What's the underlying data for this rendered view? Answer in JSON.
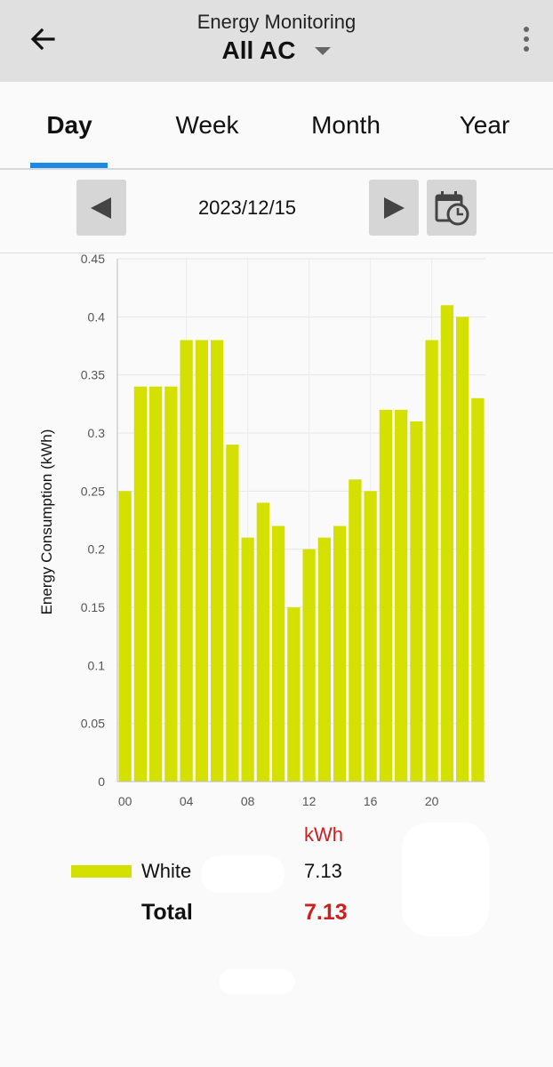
{
  "header": {
    "title": "Energy Monitoring",
    "selector_label": "All AC",
    "back_icon": "arrow-left-icon",
    "more_icon": "more-vert-icon"
  },
  "tabs": [
    {
      "label": "Day",
      "active": true
    },
    {
      "label": "Week",
      "active": false
    },
    {
      "label": "Month",
      "active": false
    },
    {
      "label": "Year",
      "active": false
    }
  ],
  "date_nav": {
    "date": "2023/12/15",
    "prev_icon": "triangle-left-icon",
    "next_icon": "triangle-right-icon",
    "calendar_icon": "calendar-clock-icon"
  },
  "chart_data": {
    "type": "bar",
    "ylabel": "Energy Consumption (kWh)",
    "xlabel": "",
    "ylim": [
      0,
      0.45
    ],
    "yticks": [
      "0",
      "0.05",
      "0.1",
      "0.15",
      "0.2",
      "0.25",
      "0.3",
      "0.35",
      "0.4",
      "0.45"
    ],
    "xticks": [
      "00",
      "04",
      "08",
      "12",
      "16",
      "20"
    ],
    "categories": [
      "00",
      "01",
      "02",
      "03",
      "04",
      "05",
      "06",
      "07",
      "08",
      "09",
      "10",
      "11",
      "12",
      "13",
      "14",
      "15",
      "16",
      "17",
      "18",
      "19",
      "20",
      "21",
      "22",
      "23"
    ],
    "values": [
      0.25,
      0.34,
      0.34,
      0.34,
      0.38,
      0.38,
      0.38,
      0.29,
      0.21,
      0.24,
      0.22,
      0.15,
      0.2,
      0.21,
      0.22,
      0.26,
      0.25,
      0.32,
      0.32,
      0.31,
      0.38,
      0.41,
      0.4,
      0.33
    ],
    "color": "#d4e000",
    "grid": true
  },
  "summary": {
    "unit": "kWh",
    "legend_name": "White",
    "legend_value": "7.13",
    "total_label": "Total",
    "total_value": "7.13"
  },
  "colors": {
    "accent": "#1e88e5",
    "bar": "#d4e000",
    "total": "#cc1f1f"
  }
}
